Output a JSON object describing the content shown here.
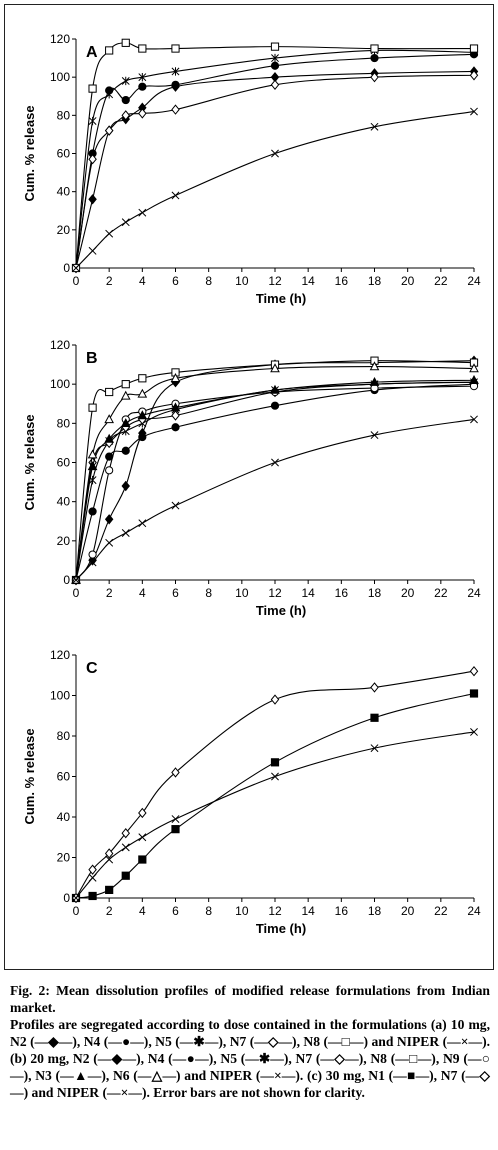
{
  "chart_data": [
    {
      "type": "line",
      "panel_label": "A",
      "xlabel": "Time (h)",
      "ylabel": "Cum. % release",
      "xlim": [
        0,
        24
      ],
      "ylim": [
        0,
        120
      ],
      "x_ticks": [
        0,
        2,
        4,
        6,
        8,
        10,
        12,
        14,
        16,
        18,
        20,
        22,
        24
      ],
      "y_ticks": [
        0,
        20,
        40,
        60,
        80,
        100,
        120
      ],
      "grid": false,
      "x": [
        0,
        1,
        2,
        3,
        4,
        6,
        12,
        18,
        24
      ],
      "series": [
        {
          "name": "N2",
          "marker": "diamond-filled",
          "values": [
            0,
            36,
            72,
            78,
            84,
            95,
            100,
            102,
            103
          ]
        },
        {
          "name": "N4",
          "marker": "circle-filled",
          "values": [
            0,
            60,
            93,
            88,
            95,
            96,
            106,
            110,
            112
          ]
        },
        {
          "name": "N5",
          "marker": "asterisk",
          "values": [
            0,
            77,
            91,
            98,
            100,
            103,
            110,
            114,
            113
          ]
        },
        {
          "name": "N7",
          "marker": "diamond-open",
          "values": [
            0,
            57,
            72,
            80,
            81,
            83,
            96,
            100,
            101
          ]
        },
        {
          "name": "N8",
          "marker": "square-open",
          "values": [
            0,
            94,
            114,
            118,
            115,
            115,
            116,
            115,
            115
          ]
        },
        {
          "name": "NIPER",
          "marker": "x",
          "values": [
            0,
            9,
            18,
            24,
            29,
            38,
            60,
            74,
            82
          ]
        }
      ]
    },
    {
      "type": "line",
      "panel_label": "B",
      "xlabel": "Time (h)",
      "ylabel": "Cum. % release",
      "xlim": [
        0,
        24
      ],
      "ylim": [
        0,
        120
      ],
      "x_ticks": [
        0,
        2,
        4,
        6,
        8,
        10,
        12,
        14,
        16,
        18,
        20,
        22,
        24
      ],
      "y_ticks": [
        0,
        20,
        40,
        60,
        80,
        100,
        120
      ],
      "grid": false,
      "x": [
        0,
        1,
        2,
        3,
        4,
        6,
        12,
        18,
        24
      ],
      "series": [
        {
          "name": "N2",
          "marker": "diamond-filled",
          "values": [
            0,
            10,
            31,
            48,
            75,
            101,
            110,
            111,
            112
          ]
        },
        {
          "name": "N4",
          "marker": "circle-filled",
          "values": [
            0,
            35,
            63,
            66,
            73,
            78,
            89,
            97,
            100
          ]
        },
        {
          "name": "N5",
          "marker": "asterisk",
          "values": [
            0,
            51,
            71,
            76,
            80,
            87,
            97,
            100,
            101
          ]
        },
        {
          "name": "N7",
          "marker": "diamond-open",
          "values": [
            0,
            60,
            70,
            78,
            82,
            84,
            96,
            100,
            101
          ]
        },
        {
          "name": "N8",
          "marker": "square-open",
          "values": [
            0,
            88,
            96,
            100,
            103,
            106,
            110,
            112,
            111
          ]
        },
        {
          "name": "N9",
          "marker": "circle-open",
          "values": [
            0,
            13,
            56,
            82,
            86,
            90,
            96,
            98,
            99
          ]
        },
        {
          "name": "N3",
          "marker": "triangle-filled",
          "values": [
            0,
            58,
            72,
            80,
            84,
            88,
            97,
            101,
            102
          ]
        },
        {
          "name": "N6",
          "marker": "triangle-open",
          "values": [
            0,
            64,
            82,
            94,
            95,
            103,
            108,
            109,
            108
          ]
        },
        {
          "name": "NIPER",
          "marker": "x",
          "values": [
            0,
            9,
            19,
            24,
            29,
            38,
            60,
            74,
            82
          ]
        }
      ]
    },
    {
      "type": "line",
      "panel_label": "C",
      "xlabel": "Time (h)",
      "ylabel": "Cum. % release",
      "xlim": [
        0,
        24
      ],
      "ylim": [
        0,
        120
      ],
      "x_ticks": [
        0,
        2,
        4,
        6,
        8,
        10,
        12,
        14,
        16,
        18,
        20,
        22,
        24
      ],
      "y_ticks": [
        0,
        20,
        40,
        60,
        80,
        100,
        120
      ],
      "grid": false,
      "x": [
        0,
        1,
        2,
        3,
        4,
        6,
        12,
        18,
        24
      ],
      "series": [
        {
          "name": "N1",
          "marker": "square-filled",
          "values": [
            0,
            1,
            4,
            11,
            19,
            34,
            67,
            89,
            101
          ]
        },
        {
          "name": "N7",
          "marker": "diamond-open",
          "values": [
            0,
            14,
            22,
            32,
            42,
            62,
            98,
            104,
            112
          ]
        },
        {
          "name": "NIPER",
          "marker": "x",
          "values": [
            0,
            10,
            19,
            25,
            30,
            39,
            60,
            74,
            82
          ]
        }
      ]
    }
  ],
  "caption": {
    "title": "Fig. 2: Mean dissolution profiles of modified release formulations from Indian market.",
    "body": "Profiles are segregated according to dose contained in the formulations (a) 10 mg, N2 (—◆—), N4 (—●—), N5 (—✱—), N7 (—◇—), N8 (—□—) and NIPER (—×—). (b) 20 mg, N2 (—◆—), N4 (—●—), N5 (—✱—), N7 (—◇—), N8 (—□—), N9 (—○—), N3 (—▲—), N6 (—△—) and NIPER (—×—). (c) 30 mg, N1 (—■—), N7 (—◇—) and NIPER (—×—). Error bars are not shown for clarity."
  }
}
